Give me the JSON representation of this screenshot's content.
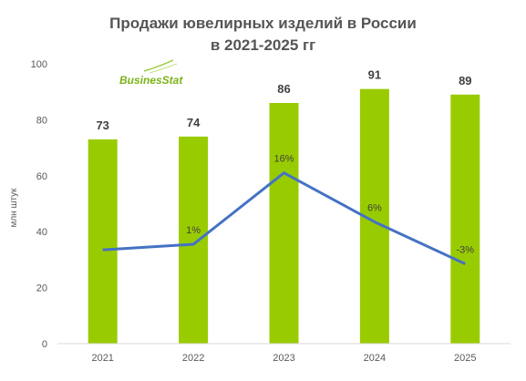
{
  "chart_data": {
    "type": "bar+line",
    "title_lines": [
      "Продажи ювелирных изделий в России",
      "в 2021-2025 гг"
    ],
    "categories": [
      "2021",
      "2022",
      "2023",
      "2024",
      "2025"
    ],
    "series": [
      {
        "kind": "bar",
        "values": [
          73,
          74,
          86,
          91,
          89
        ],
        "data_labels": [
          "73",
          "74",
          "86",
          "91",
          "89"
        ],
        "color": "#99cc00"
      },
      {
        "kind": "line",
        "values": [
          33.5,
          35.5,
          61,
          43.5,
          28.5
        ],
        "data_labels": [
          "",
          "1%",
          "16%",
          "6%",
          "-3%"
        ],
        "color": "#4472c4"
      }
    ],
    "ylabel": "млн штук",
    "ylim": [
      0,
      100
    ],
    "yticks": [
      0,
      20,
      40,
      60,
      80,
      100
    ],
    "grid": false,
    "legend": "none"
  },
  "logo": {
    "text": "BusinesStat",
    "color": "#7ab317"
  },
  "colors": {
    "title": "#555555",
    "axis_text": "#595959",
    "bar_label": "#404040"
  }
}
